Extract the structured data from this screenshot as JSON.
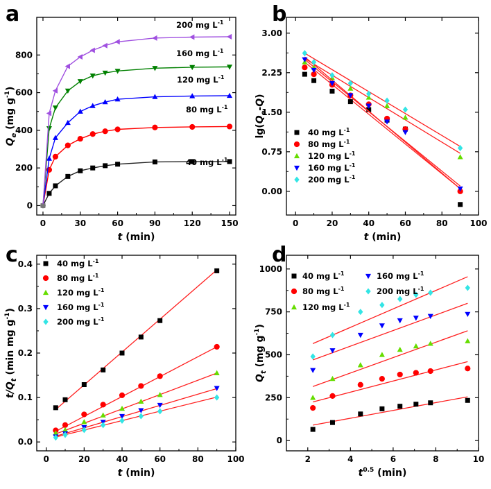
{
  "chart_data": [
    {
      "panel": "a",
      "type": "line",
      "xlabel": "t (min)",
      "ylabel": "Qe (mg g-1)",
      "xlim": [
        -5,
        155
      ],
      "ylim": [
        -50,
        1000
      ],
      "xticks": [
        0,
        30,
        60,
        90,
        120,
        150
      ],
      "yticks": [
        0,
        200,
        400,
        600,
        800
      ],
      "x": [
        0,
        5,
        10,
        20,
        30,
        40,
        50,
        60,
        90,
        120,
        150
      ],
      "series": [
        {
          "name": "40 mg L-1",
          "label": "40 mg L",
          "marker": "square",
          "color": "#000000",
          "line": "#222222",
          "values": [
            0,
            65,
            105,
            155,
            185,
            200,
            212,
            220,
            232,
            234,
            234
          ]
        },
        {
          "name": "80 mg L-1",
          "label": "80 mg L",
          "marker": "circle",
          "color": "#ff0000",
          "line": "#ff0000",
          "values": [
            0,
            190,
            260,
            320,
            355,
            380,
            395,
            405,
            415,
            418,
            420
          ]
        },
        {
          "name": "120 mg L-1",
          "label": "120 mg L",
          "marker": "triangle-up",
          "color": "#0000ff",
          "line": "#0000ff",
          "values": [
            0,
            250,
            360,
            440,
            500,
            530,
            550,
            565,
            578,
            582,
            584
          ]
        },
        {
          "name": "160 mg L-1",
          "label": "160 mg L",
          "marker": "triangle-down",
          "color": "#008000",
          "line": "#008000",
          "values": [
            0,
            410,
            520,
            610,
            660,
            690,
            705,
            715,
            730,
            735,
            737
          ]
        },
        {
          "name": "200 mg L-1",
          "label": "200 mg L",
          "marker": "triangle-left",
          "color": "#a050e0",
          "line": "#a050e0",
          "values": [
            0,
            490,
            610,
            740,
            790,
            825,
            850,
            870,
            890,
            895,
            897
          ]
        }
      ]
    },
    {
      "panel": "b",
      "type": "scatter",
      "xlabel": "t (min)",
      "ylabel": "lg(Qe-Q)",
      "xlim": [
        -5,
        100
      ],
      "ylim": [
        -0.45,
        3.3
      ],
      "xticks": [
        0,
        20,
        40,
        60,
        80,
        100
      ],
      "yticks": [
        0.0,
        0.75,
        1.5,
        2.25,
        3.0
      ],
      "ytick_labels": [
        "0.00",
        "0.75",
        "1.50",
        "2.25",
        "3.00"
      ],
      "x": [
        5,
        10,
        20,
        30,
        40,
        50,
        60,
        90
      ],
      "series": [
        {
          "name": "40 mg L-1",
          "label": "40 mg L",
          "marker": "square",
          "color": "#000000",
          "values": [
            2.22,
            2.1,
            1.9,
            1.7,
            1.55,
            1.35,
            1.18,
            -0.25
          ],
          "fit": [
            2.45,
            0.05
          ]
        },
        {
          "name": "80 mg L-1",
          "label": "80 mg L",
          "marker": "circle",
          "color": "#ff0000",
          "values": [
            2.35,
            2.22,
            2.02,
            1.82,
            1.65,
            1.38,
            1.18,
            0.0
          ],
          "fit": [
            2.5,
            0.1
          ]
        },
        {
          "name": "120 mg L-1",
          "label": "120 mg L",
          "marker": "triangle-up",
          "color": "#66dd00",
          "values": [
            2.45,
            2.35,
            2.15,
            1.95,
            1.78,
            1.62,
            1.4,
            0.65
          ],
          "fit": [
            2.52,
            0.72
          ]
        },
        {
          "name": "160 mg L-1",
          "label": "160 mg L",
          "marker": "triangle-down",
          "color": "#0000ff",
          "values": [
            2.5,
            2.3,
            2.05,
            1.82,
            1.62,
            1.32,
            1.12,
            0.05
          ],
          "fit": [
            2.55,
            0.05
          ]
        },
        {
          "name": "200 mg L-1",
          "label": "200 mg L",
          "marker": "diamond",
          "color": "#33e5e5",
          "values": [
            2.62,
            2.45,
            2.2,
            2.05,
            1.85,
            1.72,
            1.55,
            0.82
          ],
          "fit": [
            2.62,
            0.85
          ]
        }
      ]
    },
    {
      "panel": "c",
      "type": "scatter",
      "xlabel": "t (min)",
      "ylabel": "t/Qt (min mg g-1)",
      "xlim": [
        -5,
        100
      ],
      "ylim": [
        -0.02,
        0.42
      ],
      "xticks": [
        0,
        20,
        40,
        60,
        80,
        100
      ],
      "yticks": [
        0.0,
        0.1,
        0.2,
        0.3,
        0.4
      ],
      "ytick_labels": [
        "0.0",
        "0.1",
        "0.2",
        "0.3",
        "0.4"
      ],
      "x": [
        5,
        10,
        20,
        30,
        40,
        50,
        60,
        90
      ],
      "series": [
        {
          "name": "40 mg L-1",
          "label": "40 mg L",
          "marker": "square",
          "color": "#000000",
          "values": [
            0.077,
            0.095,
            0.129,
            0.162,
            0.2,
            0.236,
            0.273,
            0.385
          ],
          "fit": [
            0.073,
            0.387
          ]
        },
        {
          "name": "80 mg L-1",
          "label": "80 mg L",
          "marker": "circle",
          "color": "#ff0000",
          "values": [
            0.026,
            0.038,
            0.062,
            0.084,
            0.105,
            0.126,
            0.148,
            0.214
          ],
          "fit": [
            0.024,
            0.214
          ]
        },
        {
          "name": "120 mg L-1",
          "label": "120 mg L",
          "marker": "triangle-up",
          "color": "#66dd00",
          "values": [
            0.02,
            0.027,
            0.045,
            0.06,
            0.075,
            0.091,
            0.106,
            0.155
          ],
          "fit": [
            0.018,
            0.155
          ]
        },
        {
          "name": "160 mg L-1",
          "label": "160 mg L",
          "marker": "triangle-down",
          "color": "#0000ff",
          "values": [
            0.012,
            0.019,
            0.033,
            0.045,
            0.058,
            0.071,
            0.083,
            0.121
          ],
          "fit": [
            0.013,
            0.12
          ]
        },
        {
          "name": "200 mg L-1",
          "label": "200 mg L",
          "marker": "diamond",
          "color": "#33e5e5",
          "values": [
            0.01,
            0.016,
            0.027,
            0.038,
            0.048,
            0.058,
            0.069,
            0.1
          ],
          "fit": [
            0.011,
            0.101
          ]
        }
      ]
    },
    {
      "panel": "d",
      "type": "scatter",
      "xlabel": "t0.5 (min)",
      "ylabel": "Qt (mg g-1)",
      "xlim": [
        1,
        10
      ],
      "ylim": [
        -60,
        1080
      ],
      "xticks": [
        2,
        4,
        6,
        8,
        10
      ],
      "yticks": [
        0,
        250,
        500,
        750,
        1000
      ],
      "x": [
        2.24,
        3.16,
        4.47,
        5.48,
        6.32,
        7.07,
        7.75,
        9.49
      ],
      "series": [
        {
          "name": "40 mg L-1",
          "label": "40 mg L",
          "marker": "square",
          "color": "#000000",
          "values": [
            65,
            105,
            155,
            185,
            200,
            212,
            220,
            234
          ],
          "fit": [
            90,
            255
          ]
        },
        {
          "name": "80 mg L-1",
          "label": "80 mg L",
          "marker": "circle",
          "color": "#ff0000",
          "values": [
            190,
            260,
            325,
            360,
            385,
            395,
            405,
            420
          ],
          "fit": [
            225,
            460
          ]
        },
        {
          "name": "120 mg L-1",
          "label": "120 mg L",
          "marker": "triangle-up",
          "color": "#66dd00",
          "values": [
            250,
            360,
            440,
            500,
            530,
            550,
            565,
            580
          ],
          "fit": [
            315,
            640
          ]
        },
        {
          "name": "160 mg L-1",
          "label": "160 mg L",
          "marker": "triangle-down",
          "color": "#0000ff",
          "values": [
            410,
            525,
            615,
            670,
            700,
            715,
            725,
            737
          ],
          "fit": [
            470,
            800
          ]
        },
        {
          "name": "200 mg L-1",
          "label": "200 mg L",
          "marker": "diamond",
          "color": "#33e5e5",
          "values": [
            490,
            615,
            750,
            790,
            825,
            850,
            862,
            890
          ],
          "fit": [
            565,
            955
          ]
        }
      ]
    }
  ]
}
